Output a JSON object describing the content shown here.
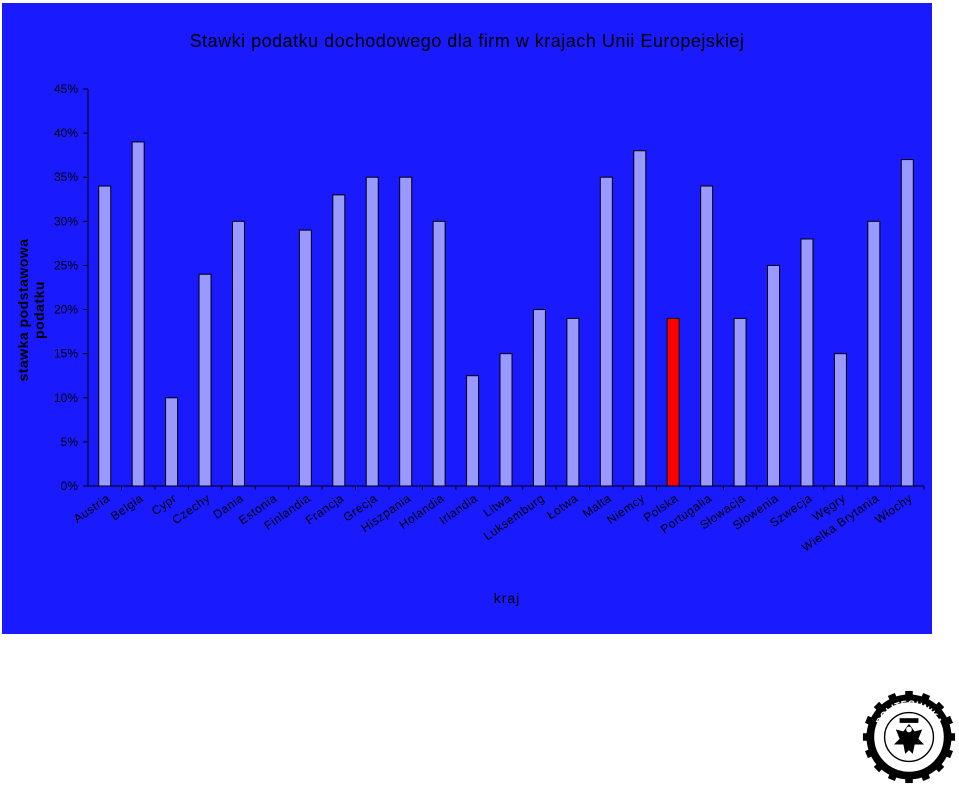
{
  "chart_data": {
    "type": "bar",
    "title": "Stawki podatku dochodowego dla firm w krajach Unii Europejskiej",
    "xlabel": "kraj",
    "ylabel": "stawka podstawowa podatku",
    "ylim": [
      0,
      45
    ],
    "yticks": [
      "0%",
      "5%",
      "10%",
      "15%",
      "20%",
      "25%",
      "30%",
      "35%",
      "40%",
      "45%"
    ],
    "grid": false,
    "categories": [
      "Austria",
      "Belgia",
      "Cypr",
      "Czechy",
      "Dania",
      "Estonia",
      "Finlandia",
      "Francja",
      "Grecja",
      "Hiszpania",
      "Holandia",
      "Irlandia",
      "Litwa",
      "Luksemburg",
      "Łotwa",
      "Malta",
      "Niemcy",
      "Polska",
      "Portugalia",
      "Słowacja",
      "Słowenia",
      "Szwecja",
      "Węgry",
      "Wielka Brytania",
      "Włochy"
    ],
    "values": [
      34,
      39,
      10,
      24,
      30,
      0,
      29,
      33,
      35,
      35,
      30,
      12.5,
      15,
      20,
      19,
      35,
      38,
      19,
      34,
      19,
      25,
      28,
      15,
      30,
      37
    ],
    "bar_color": "#9999ff",
    "highlight_color": "#ff0000",
    "highlight_category": "Polska",
    "background_color": "#1a1aff"
  },
  "logo": {
    "top_text": "POLITECHNIKA",
    "bottom_text": "OPOLSKA"
  }
}
